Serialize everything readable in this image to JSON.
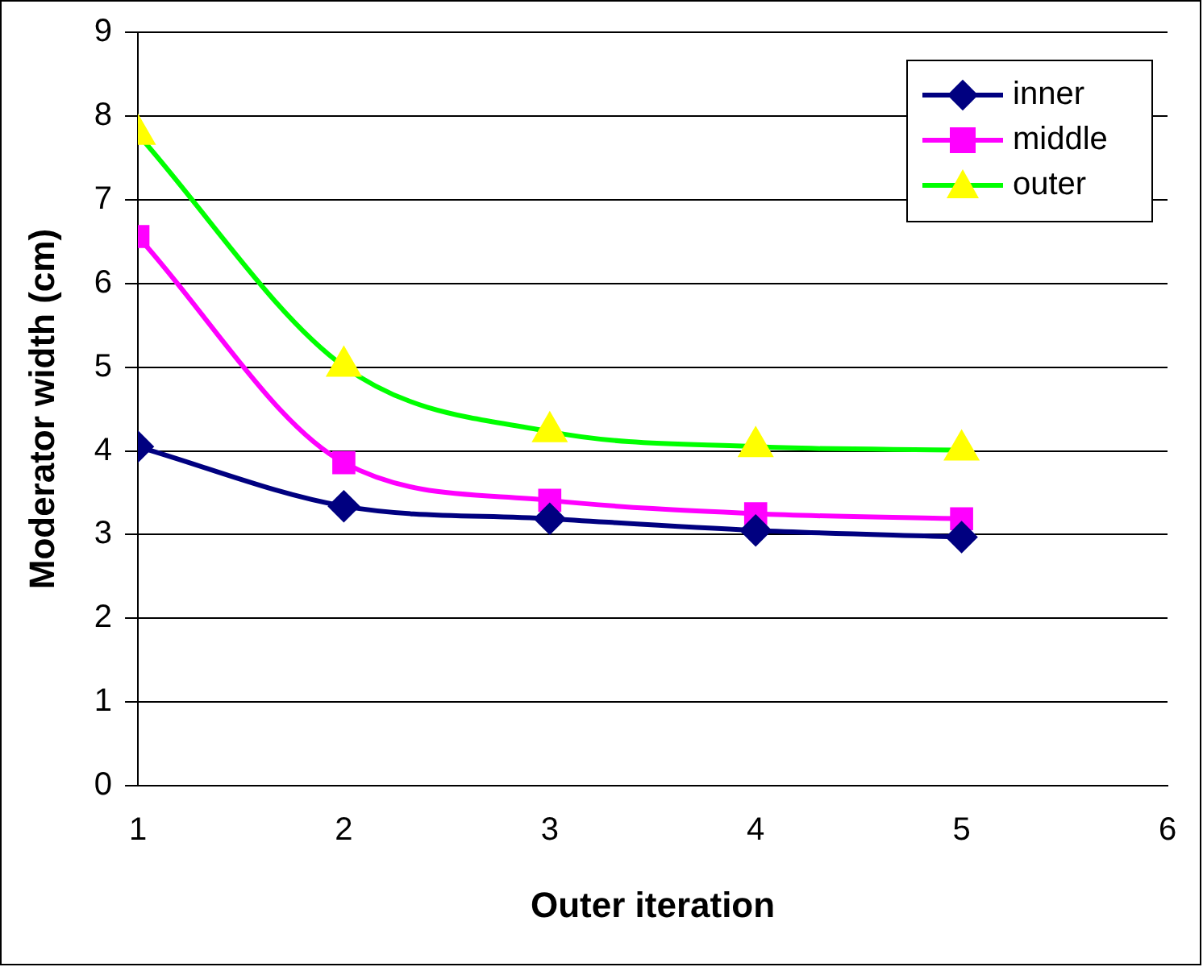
{
  "chart_data": {
    "type": "line",
    "xlabel": "Outer iteration",
    "ylabel": "Moderator width (cm)",
    "x": [
      1,
      2,
      3,
      4,
      5
    ],
    "xlim": [
      1,
      6
    ],
    "xticks": [
      1,
      2,
      3,
      4,
      5,
      6
    ],
    "ylim": [
      0,
      9
    ],
    "yticks": [
      0,
      1,
      2,
      3,
      4,
      5,
      6,
      7,
      8,
      9
    ],
    "grid": "y",
    "legend": "top right",
    "series": [
      {
        "name": "inner",
        "color": "#000080",
        "marker": "diamond",
        "values": [
          4.05,
          3.34,
          3.19,
          3.05,
          2.97
        ]
      },
      {
        "name": "middle",
        "color": "#ff00ff",
        "marker": "square",
        "values": [
          6.56,
          3.86,
          3.41,
          3.25,
          3.19
        ]
      },
      {
        "name": "outer",
        "color": "#00ff00",
        "colors": [
          "#ffff00",
          "#ffff00",
          "#ffff00",
          "#ffff00",
          "#ffff00"
        ],
        "marker": "triangle",
        "values": [
          7.78,
          5.01,
          4.23,
          4.05,
          4.01
        ]
      }
    ]
  }
}
